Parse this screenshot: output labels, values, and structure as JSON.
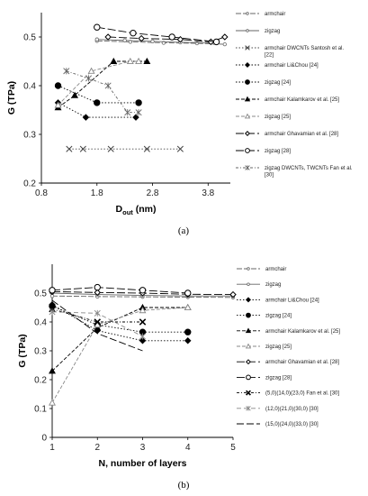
{
  "chart_data": [
    {
      "type": "line",
      "panel_label": "(a)",
      "xlabel_main": "D",
      "xlabel_sub": "out",
      "xlabel_unit": " (nm)",
      "ylabel": "G (TPa)",
      "xlim": [
        0.8,
        4.2
      ],
      "ylim": [
        0.2,
        0.55
      ],
      "xticks": [
        "0.8",
        "1.8",
        "2.8",
        "3.8"
      ],
      "xtick_values": [
        0.8,
        1.8,
        2.8,
        3.8
      ],
      "yticks": [
        "0.2",
        "0.3",
        "0.4",
        "0.5"
      ],
      "ytick_values": [
        0.2,
        0.3,
        0.4,
        0.5
      ],
      "grid": false,
      "legend_position": "right",
      "series": [
        {
          "name": "armchair",
          "color": "#666666",
          "marker": "circle-open-small",
          "dash": "6,2",
          "x": [
            1.8,
            2.4,
            3.0,
            3.6,
            4.1
          ],
          "y": [
            0.492,
            0.49,
            0.488,
            0.487,
            0.485
          ]
        },
        {
          "name": "zigzag",
          "color": "#666666",
          "marker": "circle-open-small",
          "dash": "none",
          "x": [
            1.8,
            2.3,
            2.8,
            3.3,
            3.9
          ],
          "y": [
            0.495,
            0.493,
            0.491,
            0.489,
            0.488
          ]
        },
        {
          "name": "armchair DWCNTs Santosh et al. [22]",
          "color": "#444444",
          "marker": "x",
          "dash": "1.5,2",
          "x": [
            1.3,
            1.55,
            2.05,
            2.7,
            3.3
          ],
          "y": [
            0.27,
            0.27,
            0.27,
            0.27,
            0.27
          ]
        },
        {
          "name": "armchair Li&Chou [24]",
          "color": "#000000",
          "marker": "diamond-filled",
          "dash": "1.5,2",
          "x": [
            1.1,
            1.6,
            2.5
          ],
          "y": [
            0.365,
            0.335,
            0.335
          ]
        },
        {
          "name": "zigzag [24]",
          "color": "#000000",
          "marker": "circle-filled",
          "dash": "1.5,2",
          "x": [
            1.1,
            1.8,
            2.55
          ],
          "y": [
            0.4,
            0.365,
            0.365
          ]
        },
        {
          "name": "armchair Kalamkarov et al. [25]",
          "color": "#000000",
          "marker": "triangle-filled",
          "dash": "4,2",
          "x": [
            1.1,
            1.4,
            2.1,
            2.7
          ],
          "y": [
            0.355,
            0.38,
            0.45,
            0.45
          ]
        },
        {
          "name": "zigzag [25]",
          "color": "#888888",
          "marker": "triangle-open",
          "dash": "4,2",
          "x": [
            1.1,
            1.7,
            2.4,
            2.55
          ],
          "y": [
            0.36,
            0.43,
            0.45,
            0.45
          ]
        },
        {
          "name": "armchair Ghavamian et al. [28]",
          "color": "#000000",
          "marker": "diamond-open",
          "dash": "9,3",
          "x": [
            2.0,
            2.6,
            3.3,
            3.85,
            4.1
          ],
          "y": [
            0.5,
            0.497,
            0.495,
            0.49,
            0.5
          ]
        },
        {
          "name": "zigzag [28]",
          "color": "#000000",
          "marker": "circle-open",
          "dash": "9,3",
          "x": [
            1.8,
            2.45,
            3.15,
            3.95
          ],
          "y": [
            0.52,
            0.508,
            0.5,
            0.49
          ]
        },
        {
          "name": "zigzag DWCNTs, TWCNTs Fan et al. [30]",
          "color": "#666666",
          "marker": "star",
          "dash": "3,2,1,2",
          "x": [
            1.25,
            1.65,
            2.0,
            2.35,
            2.55
          ],
          "y": [
            0.43,
            0.415,
            0.4,
            0.345,
            0.345
          ]
        }
      ]
    },
    {
      "type": "line",
      "panel_label": "(b)",
      "xlabel": "N, number of layers",
      "ylabel": "G (TPa)",
      "xlim": [
        1,
        5
      ],
      "ylim": [
        0,
        0.6
      ],
      "xticks": [
        "1",
        "2",
        "3",
        "4",
        "5"
      ],
      "xtick_values": [
        1,
        2,
        3,
        4,
        5
      ],
      "yticks": [
        "0",
        "0.1",
        "0.2",
        "0.3",
        "0.4",
        "0.5"
      ],
      "ytick_values": [
        0,
        0.1,
        0.2,
        0.3,
        0.4,
        0.5
      ],
      "grid": false,
      "legend_position": "right",
      "series": [
        {
          "name": "armchair",
          "color": "#666666",
          "marker": "circle-open-small",
          "dash": "6,2",
          "x": [
            1,
            2,
            3,
            4,
            5
          ],
          "y": [
            0.49,
            0.488,
            0.487,
            0.486,
            0.485
          ]
        },
        {
          "name": "zigzag",
          "color": "#666666",
          "marker": "circle-open-small",
          "dash": "none",
          "x": [
            1,
            2,
            3,
            4,
            5
          ],
          "y": [
            0.5,
            0.495,
            0.492,
            0.49,
            0.49
          ]
        },
        {
          "name": "armchair Li&Chou [24]",
          "color": "#000000",
          "marker": "diamond-filled",
          "dash": "1.5,2",
          "x": [
            1,
            2,
            3,
            4
          ],
          "y": [
            0.46,
            0.37,
            0.335,
            0.335
          ]
        },
        {
          "name": "zigzag [24]",
          "color": "#000000",
          "marker": "circle-filled",
          "dash": "1.5,2",
          "x": [
            1,
            2,
            3,
            4
          ],
          "y": [
            0.455,
            0.39,
            0.365,
            0.365
          ]
        },
        {
          "name": "armchair Kalamkarov et al. [25]",
          "color": "#000000",
          "marker": "triangle-filled",
          "dash": "4,2",
          "x": [
            1,
            2,
            3,
            4
          ],
          "y": [
            0.23,
            0.38,
            0.45,
            0.45
          ]
        },
        {
          "name": "zigzag [25]",
          "color": "#888888",
          "marker": "triangle-open",
          "dash": "4,2",
          "x": [
            1,
            2,
            3,
            4
          ],
          "y": [
            0.12,
            0.39,
            0.44,
            0.45
          ]
        },
        {
          "name": "armchair Ghavamian et al. [28]",
          "color": "#000000",
          "marker": "diamond-open",
          "dash": "9,3",
          "x": [
            1,
            2,
            3,
            4,
            5
          ],
          "y": [
            0.505,
            0.502,
            0.5,
            0.496,
            0.495
          ]
        },
        {
          "name": "zigzag [28]",
          "color": "#000000",
          "marker": "circle-open",
          "dash": "9,3",
          "x": [
            1,
            2,
            3,
            4
          ],
          "y": [
            0.51,
            0.52,
            0.51,
            0.5
          ]
        },
        {
          "name": "(5,0)(14,0)(23,0) Fan et al. [30]",
          "color": "#000000",
          "marker": "x-bold",
          "dash": "3,2,1,2",
          "x": [
            1,
            2,
            3
          ],
          "y": [
            0.445,
            0.4,
            0.4
          ]
        },
        {
          "name": "(12,0)(21,0)(30,0) [30]",
          "color": "#888888",
          "marker": "star",
          "dash": "5,3",
          "x": [
            1,
            2,
            3
          ],
          "y": [
            0.435,
            0.43,
            0.35
          ]
        },
        {
          "name": "(15,0)(24,0)(33,0) [30]",
          "color": "#000000",
          "marker": "none",
          "dash": "8,3",
          "x": [
            1,
            2,
            3
          ],
          "y": [
            0.475,
            0.36,
            0.3
          ]
        }
      ]
    }
  ]
}
